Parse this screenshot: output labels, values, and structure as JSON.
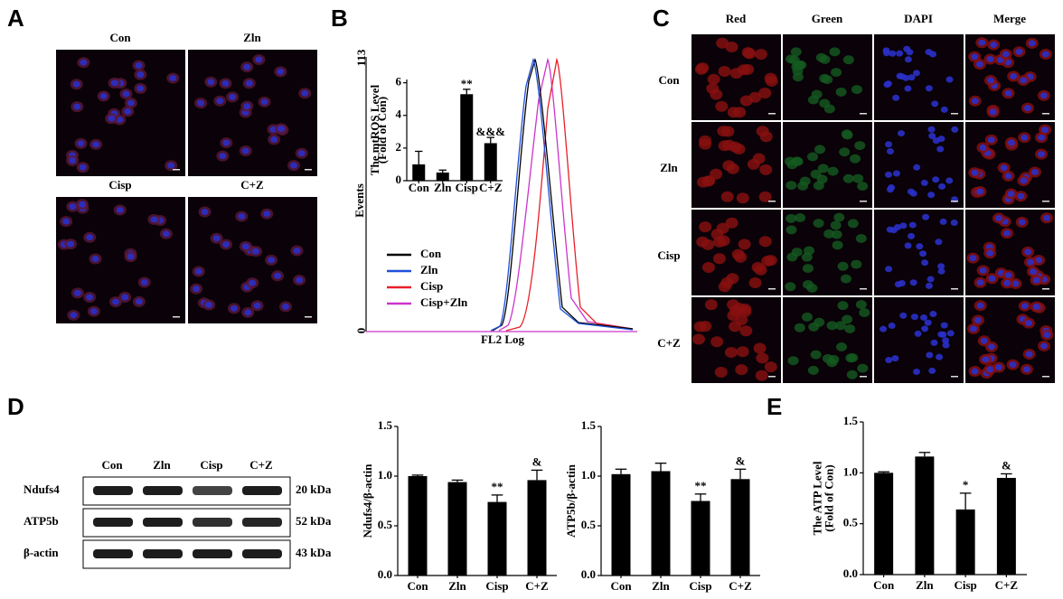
{
  "panels": {
    "A": {
      "label": "A",
      "groups": [
        "Con",
        "Zln",
        "Cisp",
        "C+Z"
      ]
    },
    "B": {
      "label": "B",
      "y_max_label": "113",
      "y_min_label": "0",
      "y_label": "Events",
      "x_label": "FL2 Log",
      "legend": [
        {
          "name": "Con",
          "color": "#000000"
        },
        {
          "name": "Zln",
          "color": "#1f4fd8"
        },
        {
          "name": "Cisp",
          "color": "#e8202a"
        },
        {
          "name": "Cisp+Zln",
          "color": "#cc33cc"
        }
      ]
    },
    "C": {
      "label": "C",
      "columns": [
        "Red",
        "Green",
        "DAPI",
        "Merge"
      ],
      "rows": [
        "Con",
        "Zln",
        "Cisp",
        "C+Z"
      ]
    },
    "D": {
      "label": "D",
      "lanes": [
        "Con",
        "Zln",
        "Cisp",
        "C+Z"
      ],
      "bands": [
        {
          "name": "Ndufs4",
          "size": "20 kDa"
        },
        {
          "name": "ATP5b",
          "size": "52 kDa"
        },
        {
          "name": "β-actin",
          "size": "43 kDa"
        }
      ]
    },
    "E": {
      "label": "E"
    }
  },
  "chart_data": [
    {
      "type": "bar",
      "y_label": "The mtROS Level",
      "y_label_2": "(Fold of Con)",
      "categories": [
        "Con",
        "Zln",
        "Cisp",
        "C+Z"
      ],
      "values": [
        1.0,
        0.5,
        5.3,
        2.3
      ],
      "errors": [
        0.8,
        0.15,
        0.3,
        0.35
      ],
      "annotations": [
        null,
        null,
        "**",
        "&&&"
      ],
      "color": "#000000",
      "ylim": [
        0,
        6.2
      ],
      "yticks": [
        0,
        2,
        4,
        6
      ]
    },
    {
      "type": "bar",
      "y_label": "Ndufs4/β-actin",
      "categories": [
        "Con",
        "Zln",
        "Cisp",
        "C+Z"
      ],
      "values": [
        1.0,
        0.94,
        0.74,
        0.96
      ],
      "errors": [
        0.01,
        0.02,
        0.07,
        0.1
      ],
      "annotations": [
        null,
        null,
        "**",
        "&"
      ],
      "color": "#000000",
      "ylim": [
        0,
        1.5
      ],
      "yticks": [
        {
          "value": 0,
          "label": "0.0"
        },
        {
          "value": 0.5,
          "label": "0.5"
        },
        {
          "value": 1,
          "label": "1.0"
        },
        {
          "value": 1.5,
          "label": "1.5"
        }
      ]
    },
    {
      "type": "bar",
      "y_label": "ATP5b/β-actin",
      "categories": [
        "Con",
        "Zln",
        "Cisp",
        "C+Z"
      ],
      "values": [
        1.02,
        1.05,
        0.75,
        0.97
      ],
      "errors": [
        0.05,
        0.08,
        0.07,
        0.1
      ],
      "annotations": [
        null,
        null,
        "**",
        "&"
      ],
      "color": "#000000",
      "ylim": [
        0,
        1.5
      ],
      "yticks": [
        {
          "value": 0,
          "label": "0.0"
        },
        {
          "value": 0.5,
          "label": "0.5"
        },
        {
          "value": 1,
          "label": "1.0"
        },
        {
          "value": 1.5,
          "label": "1.5"
        }
      ]
    },
    {
      "type": "bar",
      "y_label": "The ATP Level",
      "y_label_2": "(Fold of Con)",
      "categories": [
        "Con",
        "Zln",
        "Cisp",
        "C+Z"
      ],
      "values": [
        1.0,
        1.16,
        0.64,
        0.95
      ],
      "errors": [
        0.01,
        0.04,
        0.16,
        0.04
      ],
      "annotations": [
        null,
        null,
        "*",
        "&"
      ],
      "color": "#000000",
      "ylim": [
        0,
        1.5
      ],
      "yticks": [
        {
          "value": 0,
          "label": "0.0"
        },
        {
          "value": 0.5,
          "label": "0.5"
        },
        {
          "value": 1,
          "label": "1.0"
        },
        {
          "value": 1.5,
          "label": "1.5"
        }
      ]
    }
  ]
}
